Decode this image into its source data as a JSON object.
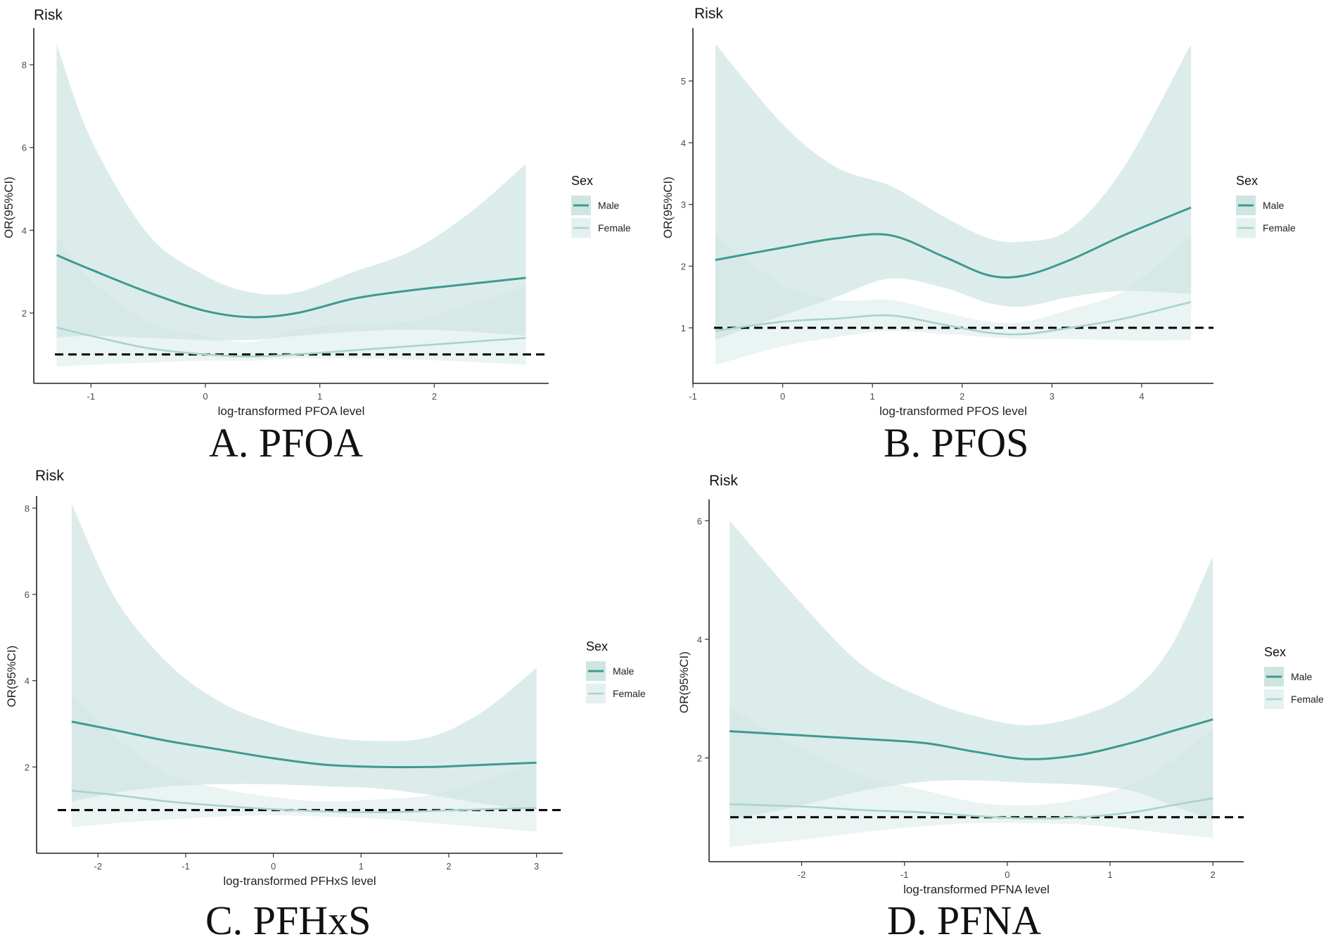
{
  "chart_data": [
    {
      "type": "line",
      "panel_label": "A. PFOA",
      "title": "Risk",
      "xlabel": "log-transformed PFOA level",
      "ylabel": "OR(95%CI)",
      "xlim": [
        -1.5,
        3.0
      ],
      "ylim": [
        0.3,
        8.8
      ],
      "xticks": [
        -1,
        0,
        1,
        2
      ],
      "yticks": [
        2,
        4,
        6,
        8
      ],
      "reference_line": 1,
      "legend": {
        "title": "Sex",
        "position": "right",
        "entries": [
          "Male",
          "Female"
        ]
      },
      "x": [
        -1.3,
        -1.0,
        -0.5,
        0.0,
        0.4,
        0.8,
        1.3,
        1.8,
        2.3,
        2.8
      ],
      "series": [
        {
          "name": "Male",
          "color": "#3e9a8f",
          "values": [
            3.4,
            3.05,
            2.5,
            2.05,
            1.9,
            2.0,
            2.35,
            2.55,
            2.7,
            2.85
          ],
          "lower": [
            1.4,
            1.45,
            1.4,
            1.35,
            1.35,
            1.45,
            1.55,
            1.6,
            1.55,
            1.45
          ],
          "upper": [
            8.5,
            6.2,
            3.9,
            2.9,
            2.5,
            2.5,
            3.0,
            3.5,
            4.4,
            5.6
          ]
        },
        {
          "name": "Female",
          "color": "#a9d3cd",
          "values": [
            1.65,
            1.45,
            1.15,
            1.0,
            0.95,
            1.0,
            1.1,
            1.2,
            1.3,
            1.4
          ],
          "lower": [
            0.7,
            0.75,
            0.8,
            0.85,
            0.85,
            0.9,
            0.9,
            0.88,
            0.82,
            0.75
          ],
          "upper": [
            3.9,
            2.8,
            1.8,
            1.45,
            1.3,
            1.6,
            1.75,
            1.8,
            2.2,
            2.65
          ]
        }
      ]
    },
    {
      "type": "line",
      "panel_label": "B. PFOS",
      "title": "Risk",
      "xlabel": "log-transformed PFOS level",
      "ylabel": "OR(95%CI)",
      "xlim": [
        -1.0,
        4.8
      ],
      "ylim": [
        0.1,
        5.8
      ],
      "xticks": [
        -1,
        0,
        1,
        2,
        3,
        4
      ],
      "yticks": [
        1,
        2,
        3,
        4,
        5
      ],
      "reference_line": 1,
      "legend": {
        "title": "Sex",
        "position": "right",
        "entries": [
          "Male",
          "Female"
        ]
      },
      "x": [
        -0.75,
        0.0,
        0.6,
        1.2,
        1.8,
        2.3,
        2.7,
        3.2,
        3.8,
        4.55
      ],
      "series": [
        {
          "name": "Male",
          "color": "#3e9a8f",
          "values": [
            2.1,
            2.3,
            2.45,
            2.5,
            2.15,
            1.85,
            1.85,
            2.1,
            2.5,
            2.95
          ],
          "lower": [
            0.8,
            1.2,
            1.5,
            1.8,
            1.65,
            1.4,
            1.35,
            1.5,
            1.6,
            1.55
          ],
          "upper": [
            5.6,
            4.3,
            3.6,
            3.3,
            2.8,
            2.45,
            2.4,
            2.6,
            3.6,
            5.6
          ]
        },
        {
          "name": "Female",
          "color": "#a9d3cd",
          "values": [
            0.95,
            1.1,
            1.15,
            1.2,
            1.05,
            0.92,
            0.9,
            1.0,
            1.15,
            1.42
          ],
          "lower": [
            0.4,
            0.7,
            0.85,
            0.95,
            0.9,
            0.85,
            0.82,
            0.82,
            0.8,
            0.8
          ],
          "upper": [
            2.5,
            1.7,
            1.45,
            1.45,
            1.25,
            1.1,
            1.1,
            1.3,
            1.6,
            2.5
          ]
        }
      ]
    },
    {
      "type": "line",
      "panel_label": "C. PFHxS",
      "title": "Risk",
      "xlabel": "log-transformed PFHxS level",
      "ylabel": "OR(95%CI)",
      "xlim": [
        -2.7,
        3.3
      ],
      "ylim": [
        0.0,
        8.2
      ],
      "xticks": [
        -2,
        -1,
        0,
        1,
        2,
        3
      ],
      "yticks": [
        2,
        4,
        6,
        8
      ],
      "reference_line": 1,
      "legend": {
        "title": "Sex",
        "position": "right",
        "entries": [
          "Male",
          "Female"
        ]
      },
      "x": [
        -2.3,
        -1.8,
        -1.2,
        -0.6,
        0.0,
        0.6,
        1.2,
        1.8,
        2.4,
        3.0
      ],
      "series": [
        {
          "name": "Male",
          "color": "#3e9a8f",
          "values": [
            3.05,
            2.85,
            2.6,
            2.4,
            2.2,
            2.05,
            2.0,
            2.0,
            2.05,
            2.1
          ],
          "lower": [
            1.2,
            1.4,
            1.55,
            1.6,
            1.6,
            1.55,
            1.5,
            1.35,
            1.15,
            1.0
          ],
          "upper": [
            8.1,
            5.9,
            4.4,
            3.5,
            3.0,
            2.7,
            2.6,
            2.7,
            3.3,
            4.3
          ]
        },
        {
          "name": "Female",
          "color": "#a9d3cd",
          "values": [
            1.45,
            1.35,
            1.2,
            1.1,
            1.02,
            0.97,
            0.95,
            0.98,
            1.02,
            1.05
          ],
          "lower": [
            0.6,
            0.7,
            0.78,
            0.85,
            0.88,
            0.85,
            0.8,
            0.7,
            0.6,
            0.5
          ],
          "upper": [
            3.7,
            2.7,
            1.85,
            1.5,
            1.3,
            1.2,
            1.25,
            1.35,
            1.7,
            2.1
          ]
        }
      ]
    },
    {
      "type": "line",
      "panel_label": "D. PFNA",
      "title": "Risk",
      "xlabel": "log-transformed PFNA level",
      "ylabel": "OR(95%CI)",
      "xlim": [
        -2.9,
        2.3
      ],
      "ylim": [
        0.25,
        6.3
      ],
      "xticks": [
        -2,
        -1,
        0,
        1,
        2
      ],
      "yticks": [
        2,
        4,
        6
      ],
      "reference_line": 1,
      "legend": {
        "title": "Sex",
        "position": "right",
        "entries": [
          "Male",
          "Female"
        ]
      },
      "x": [
        -2.7,
        -2.0,
        -1.4,
        -0.8,
        -0.3,
        0.2,
        0.7,
        1.2,
        1.6,
        2.0
      ],
      "series": [
        {
          "name": "Male",
          "color": "#3e9a8f",
          "values": [
            2.45,
            2.38,
            2.32,
            2.25,
            2.1,
            1.98,
            2.05,
            2.25,
            2.45,
            2.65
          ],
          "lower": [
            0.95,
            1.2,
            1.45,
            1.6,
            1.62,
            1.58,
            1.55,
            1.45,
            1.2,
            0.95
          ],
          "upper": [
            6.0,
            4.6,
            3.55,
            3.0,
            2.7,
            2.55,
            2.7,
            3.1,
            3.9,
            5.4
          ]
        },
        {
          "name": "Female",
          "color": "#a9d3cd",
          "values": [
            1.22,
            1.18,
            1.12,
            1.08,
            1.02,
            0.98,
            1.0,
            1.08,
            1.2,
            1.32
          ],
          "lower": [
            0.5,
            0.62,
            0.75,
            0.85,
            0.9,
            0.9,
            0.88,
            0.8,
            0.72,
            0.65
          ],
          "upper": [
            2.85,
            2.15,
            1.7,
            1.45,
            1.25,
            1.2,
            1.3,
            1.55,
            1.95,
            2.5
          ]
        }
      ]
    }
  ]
}
